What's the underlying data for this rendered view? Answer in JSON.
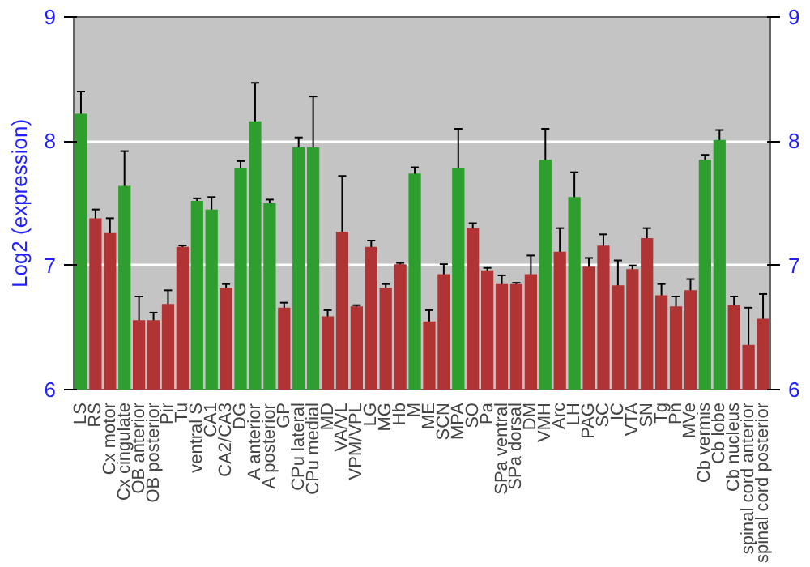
{
  "chart_data": {
    "type": "bar",
    "ylabel": "Log2 (expression)",
    "categories": [
      "LS",
      "RS",
      "Cx motor",
      "Cx cingulate",
      "OB anterior",
      "OB posterior",
      "Pir",
      "Tu",
      "ventral S",
      "CA1",
      "CA2/CA3",
      "DG",
      "A anterior",
      "A posterior",
      "GP",
      "CPu lateral",
      "CPu medial",
      "MD",
      "VA/VL",
      "VPM/VPL",
      "LG",
      "MG",
      "Hb",
      "M",
      "ME",
      "SCN",
      "MPA",
      "SO",
      "Pa",
      "SPa ventral",
      "SPa dorsal",
      "DM",
      "VMH",
      "Arc",
      "LH",
      "PAG",
      "SC",
      "IC",
      "VTA",
      "SN",
      "Tg",
      "Pn",
      "MVe",
      "Cb vermis",
      "Cb lobe",
      "Cb nucleus",
      "spinal cord anterior",
      "spinal cord posterior"
    ],
    "values": [
      8.22,
      7.38,
      7.26,
      7.64,
      6.56,
      6.56,
      6.69,
      7.15,
      7.52,
      7.45,
      6.82,
      7.78,
      8.16,
      7.5,
      6.66,
      7.95,
      7.95,
      6.59,
      7.27,
      6.67,
      7.15,
      6.82,
      7.01,
      7.74,
      6.55,
      6.93,
      7.78,
      7.3,
      6.96,
      6.85,
      6.85,
      6.93,
      7.85,
      7.11,
      7.55,
      6.99,
      7.16,
      6.84,
      6.97,
      7.22,
      6.76,
      6.67,
      6.8,
      7.85,
      8.01,
      6.68,
      6.36,
      6.57
    ],
    "errors": [
      0.18,
      0.07,
      0.12,
      0.28,
      0.19,
      0.06,
      0.11,
      0.01,
      0.02,
      0.1,
      0.03,
      0.06,
      0.31,
      0.03,
      0.04,
      0.08,
      0.41,
      0.05,
      0.45,
      0.01,
      0.05,
      0.03,
      0.01,
      0.05,
      0.09,
      0.08,
      0.32,
      0.04,
      0.02,
      0.07,
      0.01,
      0.15,
      0.25,
      0.19,
      0.2,
      0.07,
      0.09,
      0.2,
      0.03,
      0.08,
      0.09,
      0.08,
      0.09,
      0.04,
      0.08,
      0.07,
      0.3,
      0.2
    ],
    "colors": [
      "#2e9e2e",
      "#b03434",
      "#b03434",
      "#2e9e2e",
      "#b03434",
      "#b03434",
      "#b03434",
      "#b03434",
      "#2e9e2e",
      "#2e9e2e",
      "#b03434",
      "#2e9e2e",
      "#2e9e2e",
      "#2e9e2e",
      "#b03434",
      "#2e9e2e",
      "#2e9e2e",
      "#b03434",
      "#b03434",
      "#b03434",
      "#b03434",
      "#b03434",
      "#b03434",
      "#2e9e2e",
      "#b03434",
      "#b03434",
      "#2e9e2e",
      "#b03434",
      "#b03434",
      "#b03434",
      "#b03434",
      "#b03434",
      "#2e9e2e",
      "#b03434",
      "#2e9e2e",
      "#b03434",
      "#b03434",
      "#b03434",
      "#b03434",
      "#b03434",
      "#b03434",
      "#b03434",
      "#b03434",
      "#2e9e2e",
      "#2e9e2e",
      "#b03434",
      "#b03434",
      "#b03434"
    ],
    "ylim": [
      6,
      9
    ],
    "yticks": [
      6,
      7,
      8,
      9
    ],
    "y2lim": [
      6,
      9
    ],
    "y2ticks": [
      6,
      7,
      8,
      9
    ],
    "grid": "y"
  }
}
